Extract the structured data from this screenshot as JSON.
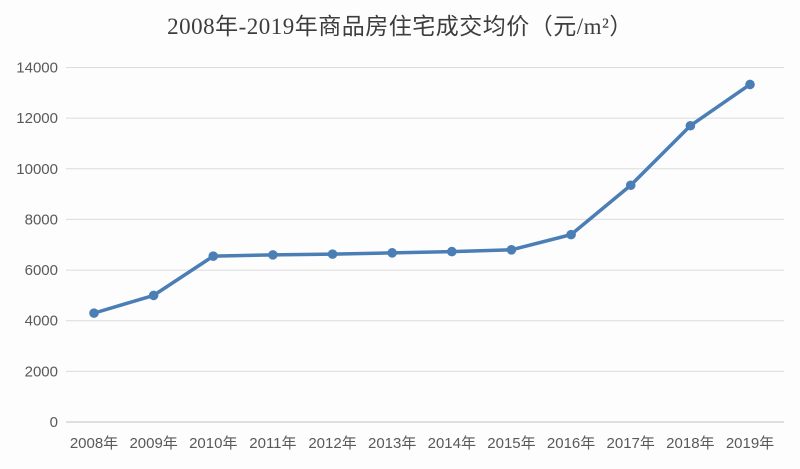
{
  "chart_data": {
    "type": "line",
    "title": "2008年-2019年商品房住宅成交均价（元/m²）",
    "categories": [
      "2008年",
      "2009年",
      "2010年",
      "2011年",
      "2012年",
      "2013年",
      "2014年",
      "2015年",
      "2016年",
      "2017年",
      "2018年",
      "2019年"
    ],
    "series": [
      {
        "name": "商品房住宅成交均价",
        "values": [
          4300,
          5000,
          6550,
          6600,
          6630,
          6680,
          6730,
          6800,
          7400,
          9350,
          11700,
          13330
        ]
      }
    ],
    "xlabel": "",
    "ylabel": "",
    "ylim": [
      0,
      14000
    ],
    "ytick_interval": 2000,
    "ytick_labels": [
      "0",
      "2000",
      "4000",
      "6000",
      "8000",
      "10000",
      "12000",
      "14000"
    ],
    "grid": "horizontal",
    "legend_position": "none",
    "marker": "circle",
    "style": {
      "line_color": "#4a7eb5",
      "marker_color": "#4a7eb5",
      "grid_color": "#dcdcdc",
      "axis_line_color": "#c1c1c1",
      "tick_label_color": "#595959",
      "title_color": "#3d3d3d",
      "background_color": "#fdfdfd"
    }
  }
}
